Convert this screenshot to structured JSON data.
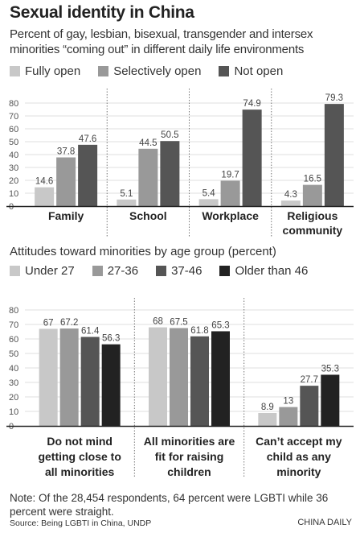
{
  "title": "Sexual identity in China",
  "subtitle": "Percent of gay, lesbian, bisexual, transgender and intersex minorities “coming out” in different daily life environments",
  "section2_title": "Attitudes toward minorities by age group (percent)",
  "note": "Note: Of the 28,454 respondents, 64 percent were LGBTI while 36 percent were straight.",
  "source": "Source: Being LGBTI in China, UNDP",
  "credit": "CHINA DAILY",
  "chart_data": [
    {
      "type": "bar",
      "categories": [
        "Family",
        "School",
        "Workplace",
        "Religious community"
      ],
      "series": [
        {
          "name": "Fully open",
          "color": "#c8c8c8",
          "values": [
            14.6,
            5.1,
            5.4,
            4.3
          ]
        },
        {
          "name": "Selectively open",
          "color": "#999999",
          "values": [
            37.8,
            44.5,
            19.7,
            16.5
          ]
        },
        {
          "name": "Not open",
          "color": "#555555",
          "values": [
            47.6,
            50.5,
            74.9,
            79.3
          ]
        }
      ],
      "yticks": [
        0,
        10,
        20,
        30,
        40,
        50,
        60,
        70,
        80
      ],
      "ylim": [
        0,
        80
      ]
    },
    {
      "type": "bar",
      "categories": [
        "Do not mind getting close to all minorities",
        "All minorities are fit for raising children",
        "Can’t accept my child as any minority"
      ],
      "series": [
        {
          "name": "Under 27",
          "color": "#c8c8c8",
          "values": [
            67,
            68,
            8.9
          ]
        },
        {
          "name": "27-36",
          "color": "#999999",
          "values": [
            67.2,
            67.5,
            13
          ]
        },
        {
          "name": "37-46",
          "color": "#555555",
          "values": [
            61.4,
            61.8,
            27.7
          ]
        },
        {
          "name": "Older than 46",
          "color": "#222222",
          "values": [
            56.3,
            65.3,
            35.3
          ]
        }
      ],
      "yticks": [
        0,
        10,
        20,
        30,
        40,
        50,
        60,
        70,
        80
      ],
      "ylim": [
        0,
        80
      ]
    }
  ]
}
